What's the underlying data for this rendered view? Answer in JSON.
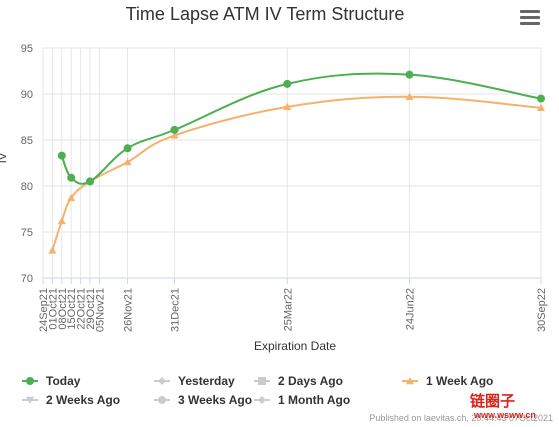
{
  "chart_data": {
    "type": "line",
    "title": "Time Lapse ATM IV Term Structure",
    "xlabel": "Expiration Date",
    "ylabel": "IV",
    "ylim": [
      70,
      95
    ],
    "yticks": [
      70,
      75,
      80,
      85,
      90,
      95
    ],
    "grid": true,
    "legend_position": "bottom",
    "x_ticks": [
      {
        "label": "24Sep21",
        "date": "2021-09-24"
      },
      {
        "label": "01Oct21",
        "date": "2021-10-01"
      },
      {
        "label": "08Oct21",
        "date": "2021-10-08"
      },
      {
        "label": "15Oct21",
        "date": "2021-10-15"
      },
      {
        "label": "22Oct21",
        "date": "2021-10-22"
      },
      {
        "label": "29Oct21",
        "date": "2021-10-29"
      },
      {
        "label": "05Nov21",
        "date": "2021-11-05"
      },
      {
        "label": "26Nov21",
        "date": "2021-11-26"
      },
      {
        "label": "31Dec21",
        "date": "2021-12-31"
      },
      {
        "label": "25Mar22",
        "date": "2022-03-25"
      },
      {
        "label": "24Jun22",
        "date": "2022-06-24"
      },
      {
        "label": "30Sep22",
        "date": "2022-09-30"
      }
    ],
    "series": [
      {
        "name": "Today",
        "color": "#4caf50",
        "marker": "circle",
        "visible": true,
        "points": [
          {
            "date": "2021-10-08",
            "value": 83.3
          },
          {
            "date": "2021-10-15",
            "value": 80.9
          },
          {
            "date": "2021-10-29",
            "value": 80.5
          },
          {
            "date": "2021-11-26",
            "value": 84.1
          },
          {
            "date": "2021-12-31",
            "value": 86.1
          },
          {
            "date": "2022-03-25",
            "value": 91.1
          },
          {
            "date": "2022-06-24",
            "value": 92.1
          },
          {
            "date": "2022-09-30",
            "value": 89.5
          }
        ]
      },
      {
        "name": "Yesterday",
        "color": "#cccccc",
        "marker": "diamond",
        "visible": false,
        "points": []
      },
      {
        "name": "2 Days Ago",
        "color": "#cccccc",
        "marker": "square",
        "visible": false,
        "points": []
      },
      {
        "name": "1 Week Ago",
        "color": "#f5b16e",
        "marker": "triangle",
        "visible": true,
        "points": [
          {
            "date": "2021-10-01",
            "value": 73.0
          },
          {
            "date": "2021-10-08",
            "value": 76.2
          },
          {
            "date": "2021-10-15",
            "value": 78.7
          },
          {
            "date": "2021-10-29",
            "value": 80.5
          },
          {
            "date": "2021-11-26",
            "value": 82.6
          },
          {
            "date": "2021-12-31",
            "value": 85.5
          },
          {
            "date": "2022-03-25",
            "value": 88.6
          },
          {
            "date": "2022-06-24",
            "value": 89.7
          },
          {
            "date": "2022-09-30",
            "value": 88.5
          }
        ]
      },
      {
        "name": "2 Weeks Ago",
        "color": "#cccccc",
        "marker": "triangle-down",
        "visible": false,
        "points": []
      },
      {
        "name": "3 Weeks Ago",
        "color": "#cccccc",
        "marker": "circle",
        "visible": false,
        "points": []
      },
      {
        "name": "1 Month Ago",
        "color": "#cccccc",
        "marker": "diamond",
        "visible": false,
        "points": []
      }
    ]
  },
  "credits": "Published on laevitas.ch, 20:44:43 07Oct2021",
  "watermark": {
    "logo": "链圈子",
    "url": "www.wsww.cn"
  },
  "menu_icon": "hamburger-menu-icon"
}
